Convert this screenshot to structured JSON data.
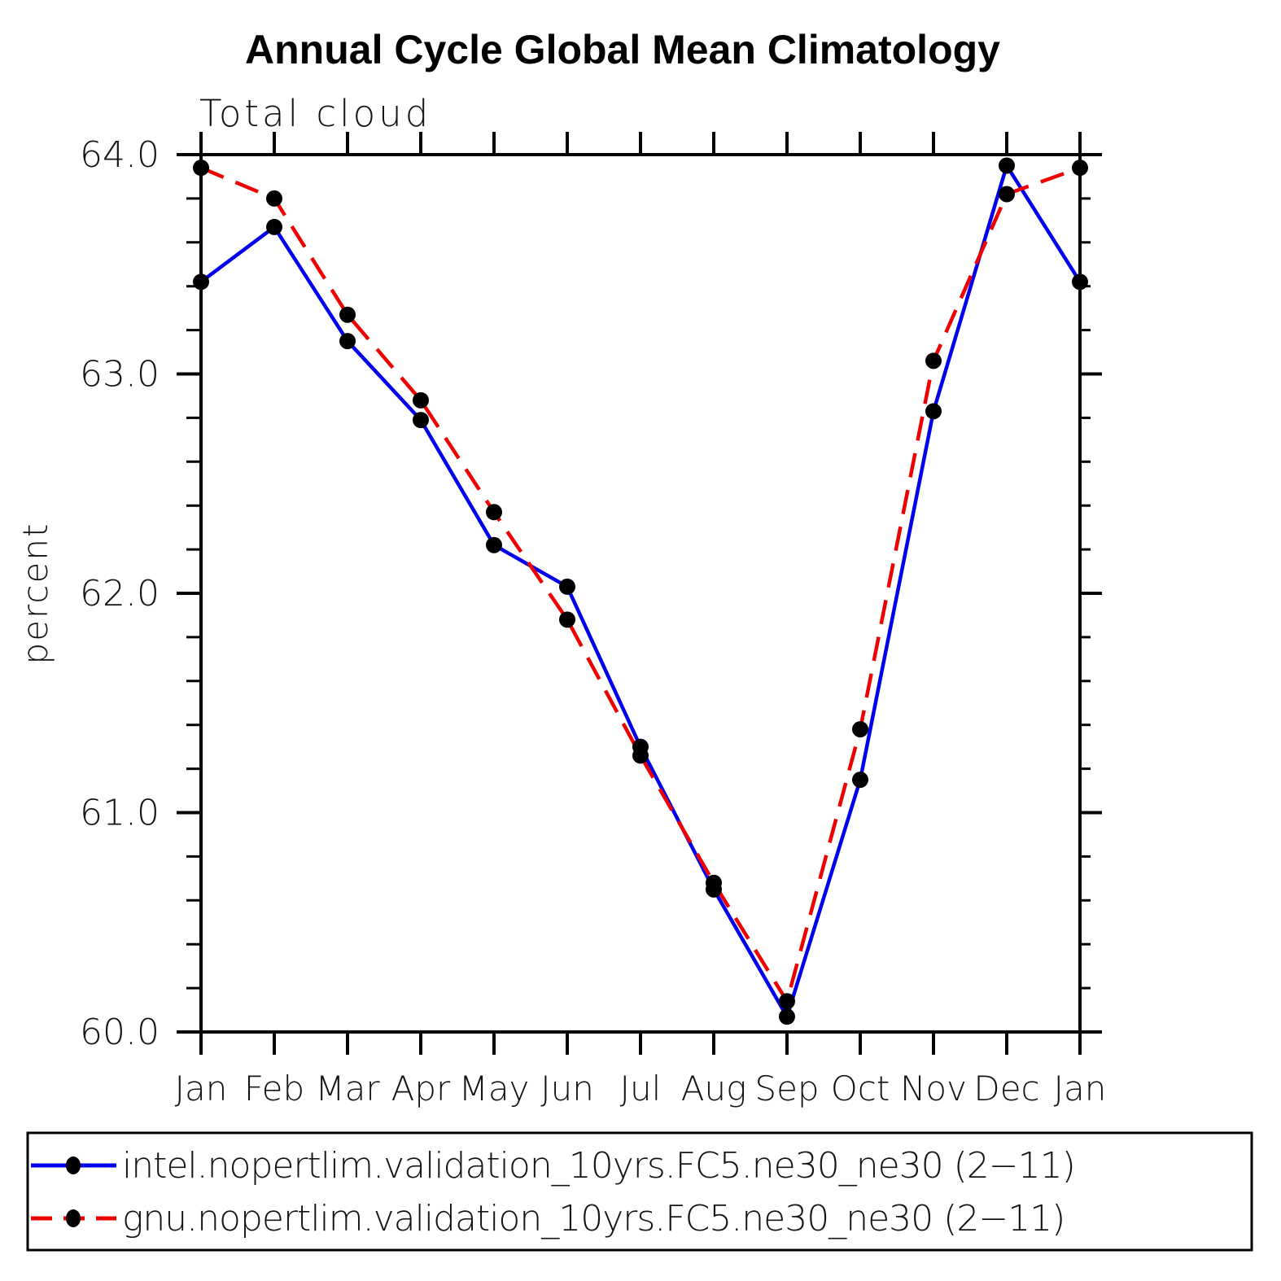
{
  "title": "Annual Cycle Global Mean Climatology",
  "subtitle": "Total cloud",
  "ylabel": "percent",
  "chart_data": {
    "type": "line",
    "title": "Annual Cycle Global Mean Climatology",
    "subtitle": "Total cloud",
    "xlabel": "",
    "ylabel": "percent",
    "x_categories": [
      "Jan",
      "Feb",
      "Mar",
      "Apr",
      "May",
      "Jun",
      "Jul",
      "Aug",
      "Sep",
      "Oct",
      "Nov",
      "Dec",
      "Jan"
    ],
    "ylim": [
      60.0,
      64.0
    ],
    "ytick_major_labels": [
      "60.0",
      "61.0",
      "62.0",
      "63.0",
      "64.0"
    ],
    "ytick_major_values": [
      60.0,
      61.0,
      62.0,
      63.0,
      64.0
    ],
    "ytick_minor_step": 0.2,
    "grid": false,
    "legend_position": "bottom",
    "marker": "filled-circle",
    "marker_color": "#000000",
    "series": [
      {
        "name": "intel.nopertlim.validation_10yrs.FC5.ne30_ne30 (2−11)",
        "color": "#0000ee",
        "line_style": "solid",
        "values": [
          63.42,
          63.67,
          63.15,
          62.79,
          62.22,
          62.03,
          61.3,
          60.65,
          60.07,
          61.15,
          62.83,
          63.95,
          63.42
        ]
      },
      {
        "name": "gnu.nopertlim.validation_10yrs.FC5.ne30_ne30 (2−11)",
        "color": "#ee0000",
        "line_style": "dashed",
        "values": [
          63.94,
          63.8,
          63.27,
          62.88,
          62.37,
          61.88,
          61.26,
          60.68,
          60.14,
          61.38,
          63.06,
          63.82,
          63.94
        ]
      }
    ]
  },
  "colors": {
    "background": "#ffffff",
    "axis": "#000000",
    "text": "#141414",
    "series_intel": "#0000ee",
    "series_gnu": "#ee0000",
    "marker": "#000000"
  }
}
